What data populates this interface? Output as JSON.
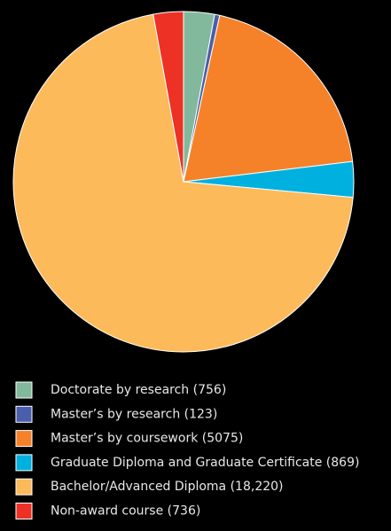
{
  "chart_data": {
    "type": "pie",
    "categories": [
      "Doctorate by research",
      "Master’s by research",
      "Master’s by coursework",
      "Graduate Diploma and Graduate Certificate",
      "Bachelor/Advanced Diploma",
      "Non-award course"
    ],
    "values": [
      756,
      123,
      5075,
      869,
      18220,
      736
    ],
    "value_labels": [
      "(756)",
      "(123)",
      "(5075)",
      "(869)",
      "(18,220)",
      "(736)"
    ],
    "colors": [
      "#82b99c",
      "#4a5eab",
      "#f58229",
      "#00b1e0",
      "#fdba5a",
      "#ee3125"
    ]
  }
}
